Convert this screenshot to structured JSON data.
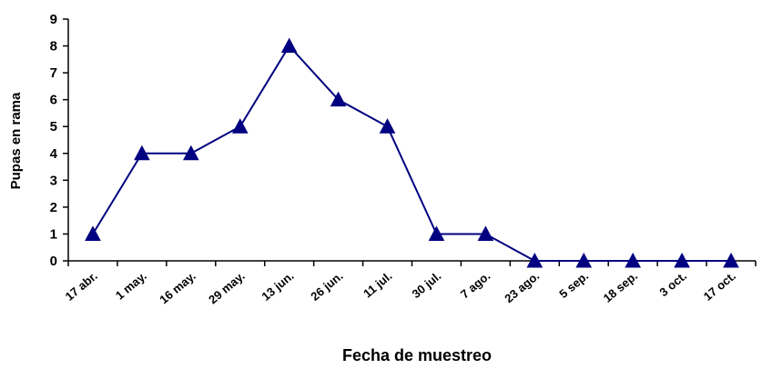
{
  "chart_data": {
    "type": "line",
    "title": "",
    "xlabel": "Fecha de muestreo",
    "ylabel": "Pupas en rama",
    "ylim": [
      0,
      9
    ],
    "yticks": [
      0,
      1,
      2,
      3,
      4,
      5,
      6,
      7,
      8,
      9
    ],
    "grid": false,
    "categories": [
      "17 abr.",
      "1 may.",
      "16 may.",
      "29 may.",
      "13 jun.",
      "26 jun.",
      "11 jul.",
      "30 jul.",
      "7 ago.",
      "23 ago.",
      "5 sep.",
      "18 sep.",
      "3 oct.",
      "17 oct."
    ],
    "series": [
      {
        "values": [
          1,
          4,
          4,
          5,
          8,
          6,
          5,
          1,
          1,
          0,
          0,
          0,
          0,
          0
        ],
        "color": "#000080",
        "marker": "triangle"
      }
    ]
  }
}
